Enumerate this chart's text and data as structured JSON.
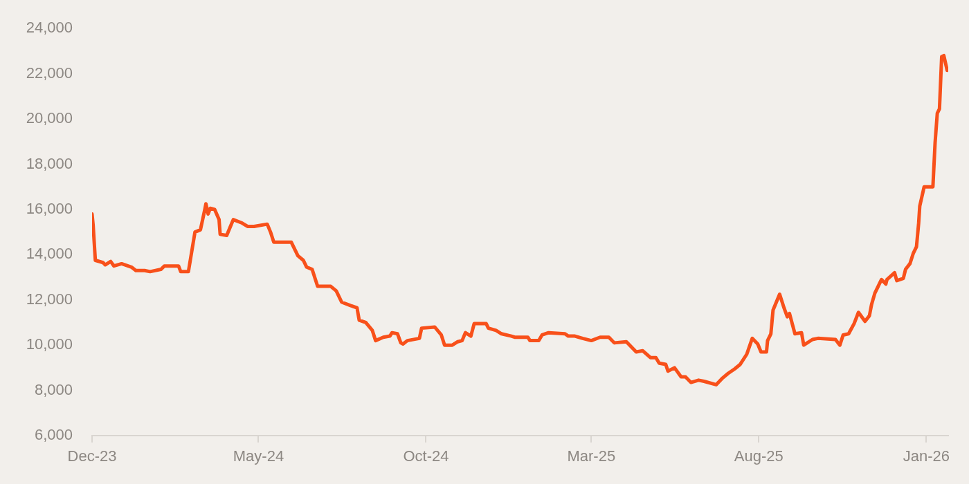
{
  "chart_data": {
    "type": "line",
    "x": [
      "2023-12-01",
      "2023-12-02",
      "2023-12-04",
      "2023-12-11",
      "2023-12-13",
      "2023-12-18",
      "2023-12-21",
      "2023-12-28",
      "2024-01-06",
      "2024-01-10",
      "2024-01-18",
      "2024-01-23",
      "2024-02-02",
      "2024-02-05",
      "2024-02-18",
      "2024-02-20",
      "2024-02-27",
      "2024-03-04",
      "2024-03-09",
      "2024-03-13",
      "2024-03-14",
      "2024-03-16",
      "2024-03-18",
      "2024-03-22",
      "2024-03-26",
      "2024-03-27",
      "2024-04-02",
      "2024-04-05",
      "2024-04-08",
      "2024-04-16",
      "2024-04-21",
      "2024-04-27",
      "2024-05-09",
      "2024-05-12",
      "2024-05-15",
      "2024-05-31",
      "2024-06-06",
      "2024-06-11",
      "2024-06-14",
      "2024-06-19",
      "2024-06-24",
      "2024-07-06",
      "2024-07-11",
      "2024-07-16",
      "2024-07-24",
      "2024-07-30",
      "2024-08-01",
      "2024-08-07",
      "2024-08-13",
      "2024-08-16",
      "2024-08-23",
      "2024-08-29",
      "2024-08-31",
      "2024-09-05",
      "2024-09-08",
      "2024-09-10",
      "2024-09-14",
      "2024-09-25",
      "2024-09-27",
      "2024-10-09",
      "2024-10-15",
      "2024-10-18",
      "2024-10-25",
      "2024-10-30",
      "2024-11-03",
      "2024-11-06",
      "2024-11-11",
      "2024-11-14",
      "2024-11-25",
      "2024-11-27",
      "2024-12-04",
      "2024-12-09",
      "2024-12-18",
      "2024-12-21",
      "2025-01-02",
      "2025-01-04",
      "2025-01-12",
      "2025-01-15",
      "2025-01-21",
      "2025-02-05",
      "2025-02-08",
      "2025-02-14",
      "2025-02-21",
      "2025-03-01",
      "2025-03-09",
      "2025-03-17",
      "2025-03-22",
      "2025-04-02",
      "2025-04-11",
      "2025-04-17",
      "2025-04-24",
      "2025-04-29",
      "2025-05-02",
      "2025-05-08",
      "2025-05-10",
      "2025-05-16",
      "2025-05-22",
      "2025-05-26",
      "2025-05-31",
      "2025-06-07",
      "2025-06-12",
      "2025-06-23",
      "2025-06-29",
      "2025-07-04",
      "2025-07-10",
      "2025-07-15",
      "2025-07-21",
      "2025-07-26",
      "2025-07-31",
      "2025-08-03",
      "2025-08-08",
      "2025-08-09",
      "2025-08-12",
      "2025-08-14",
      "2025-08-20",
      "2025-08-24",
      "2025-08-27",
      "2025-08-29",
      "2025-09-03",
      "2025-09-09",
      "2025-09-11",
      "2025-09-19",
      "2025-09-24",
      "2025-10-10",
      "2025-10-14",
      "2025-10-17",
      "2025-10-22",
      "2025-10-27",
      "2025-10-31",
      "2025-11-06",
      "2025-11-10",
      "2025-11-12",
      "2025-11-15",
      "2025-11-21",
      "2025-11-25",
      "2025-11-26",
      "2025-12-03",
      "2025-12-05",
      "2025-12-11",
      "2025-12-13",
      "2025-12-17",
      "2025-12-20",
      "2025-12-23",
      "2025-12-25",
      "2025-12-26",
      "2025-12-30",
      "2026-01-07",
      "2026-01-09",
      "2026-01-11",
      "2026-01-13",
      "2026-01-15",
      "2026-01-17",
      "2026-01-20"
    ],
    "series": [
      {
        "color": "#f8501a",
        "values": [
          15800,
          15300,
          13750,
          13650,
          13550,
          13700,
          13500,
          13600,
          13450,
          13300,
          13300,
          13250,
          13350,
          13500,
          13500,
          13250,
          13250,
          15000,
          15100,
          16000,
          16250,
          15800,
          16050,
          16000,
          15550,
          14900,
          14850,
          15200,
          15550,
          15400,
          15250,
          15250,
          15350,
          15000,
          14550,
          14550,
          13950,
          13750,
          13450,
          13350,
          12600,
          12600,
          12400,
          11900,
          11750,
          11650,
          11100,
          11000,
          10650,
          10200,
          10350,
          10400,
          10550,
          10500,
          10100,
          10050,
          10200,
          10300,
          10750,
          10800,
          10450,
          10000,
          10000,
          10150,
          10200,
          10550,
          10400,
          10950,
          10950,
          10750,
          10650,
          10500,
          10400,
          10350,
          10350,
          10200,
          10200,
          10450,
          10550,
          10500,
          10400,
          10400,
          10300,
          10200,
          10350,
          10350,
          10100,
          10150,
          9700,
          9750,
          9450,
          9450,
          9200,
          9150,
          8850,
          9000,
          8600,
          8600,
          8350,
          8450,
          8400,
          8250,
          8550,
          8750,
          8950,
          9150,
          9600,
          10300,
          10050,
          9700,
          9700,
          10200,
          10500,
          11550,
          12250,
          11650,
          11250,
          11400,
          10500,
          10550,
          10000,
          10250,
          10300,
          10250,
          10000,
          10450,
          10500,
          10950,
          11450,
          11050,
          11300,
          11800,
          12300,
          12900,
          12700,
          12900,
          13200,
          12850,
          12950,
          13350,
          13600,
          14050,
          14350,
          15400,
          16150,
          17000,
          17000,
          18950,
          20250,
          20450,
          22750,
          22800,
          22150
        ]
      }
    ],
    "xlim": [
      "2023-12-01",
      "2026-01-21"
    ],
    "xticks": [
      {
        "value": "2023-12-01",
        "label": "Dec-23"
      },
      {
        "value": "2024-05-01",
        "label": "May-24"
      },
      {
        "value": "2024-10-01",
        "label": "Oct-24"
      },
      {
        "value": "2025-03-01",
        "label": "Mar-25"
      },
      {
        "value": "2025-08-01",
        "label": "Aug-25"
      },
      {
        "value": "2026-01-01",
        "label": "Jan-26"
      }
    ],
    "ylim": [
      6000,
      24000
    ],
    "yticks": [
      {
        "value": 6000,
        "label": "6,000"
      },
      {
        "value": 8000,
        "label": "8,000"
      },
      {
        "value": 10000,
        "label": "10,000"
      },
      {
        "value": 12000,
        "label": "12,000"
      },
      {
        "value": 14000,
        "label": "14,000"
      },
      {
        "value": 16000,
        "label": "16,000"
      },
      {
        "value": 18000,
        "label": "18,000"
      },
      {
        "value": 20000,
        "label": "20,000"
      },
      {
        "value": 22000,
        "label": "22,000"
      },
      {
        "value": 24000,
        "label": "24,000"
      }
    ],
    "grid": false,
    "legend": false,
    "marker": "none",
    "line_style": "solid"
  }
}
